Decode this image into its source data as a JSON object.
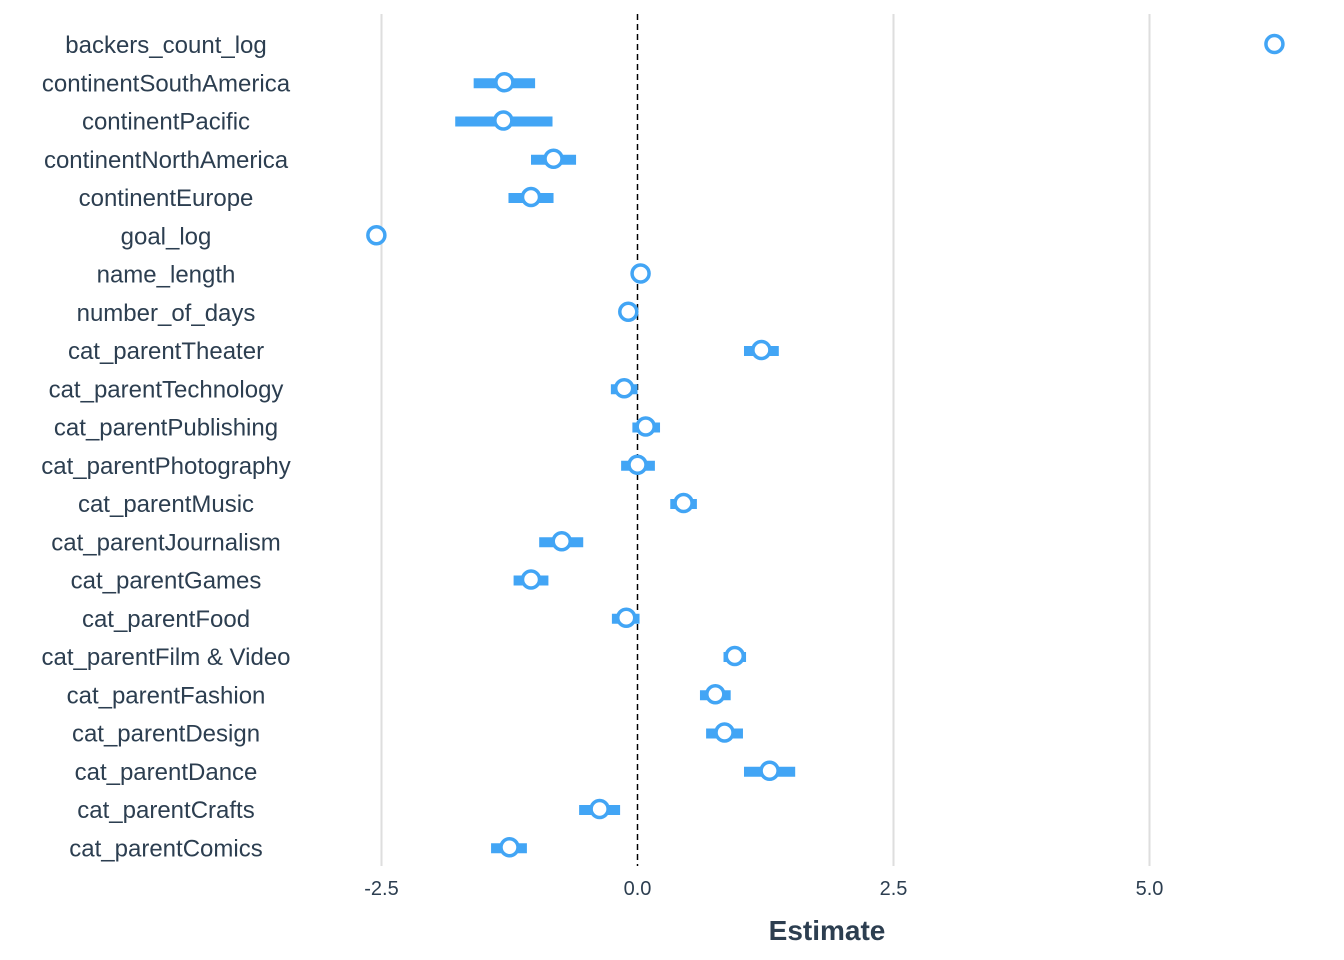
{
  "chart_data": {
    "type": "coefficient-plot",
    "title": "",
    "xlabel": "Estimate",
    "ylabel": "",
    "xlim": [
      -3.75,
      6.6
    ],
    "x_ticks": [
      -2.5,
      0.0,
      2.5,
      5.0
    ],
    "x_tick_labels": [
      "-2.5",
      "0.0",
      "2.5",
      "5.0"
    ],
    "reference_line": 0,
    "grid": "vertical major gridlines",
    "colors": {
      "point": "#42a5f5",
      "interval": "#42a5f5",
      "grid": "#dedede",
      "text": "#2c3e50",
      "reference": "#000000"
    },
    "terms": [
      {
        "term": "backers_count_log",
        "estimate": 6.22,
        "low": 6.2,
        "high": 6.24
      },
      {
        "term": "continentSouthAmerica",
        "estimate": -1.3,
        "low": -1.6,
        "high": -1.0
      },
      {
        "term": "continentPacific",
        "estimate": -1.31,
        "low": -1.78,
        "high": -0.83
      },
      {
        "term": "continentNorthAmerica",
        "estimate": -0.82,
        "low": -1.04,
        "high": -0.6
      },
      {
        "term": "continentEurope",
        "estimate": -1.04,
        "low": -1.26,
        "high": -0.82
      },
      {
        "term": "goal_log",
        "estimate": -2.55,
        "low": -2.56,
        "high": -2.54
      },
      {
        "term": "name_length",
        "estimate": 0.03,
        "low": 0.02,
        "high": 0.04
      },
      {
        "term": "number_of_days",
        "estimate": -0.09,
        "low": -0.1,
        "high": -0.08
      },
      {
        "term": "cat_parentTheater",
        "estimate": 1.21,
        "low": 1.04,
        "high": 1.38
      },
      {
        "term": "cat_parentTechnology",
        "estimate": -0.13,
        "low": -0.26,
        "high": 0.0
      },
      {
        "term": "cat_parentPublishing",
        "estimate": 0.08,
        "low": -0.05,
        "high": 0.22
      },
      {
        "term": "cat_parentPhotography",
        "estimate": 0.0,
        "low": -0.16,
        "high": 0.17
      },
      {
        "term": "cat_parentMusic",
        "estimate": 0.45,
        "low": 0.32,
        "high": 0.58
      },
      {
        "term": "cat_parentJournalism",
        "estimate": -0.74,
        "low": -0.96,
        "high": -0.53
      },
      {
        "term": "cat_parentGames",
        "estimate": -1.04,
        "low": -1.21,
        "high": -0.87
      },
      {
        "term": "cat_parentFood",
        "estimate": -0.11,
        "low": -0.25,
        "high": 0.02
      },
      {
        "term": "cat_parentFilm & Video",
        "estimate": 0.95,
        "low": 0.84,
        "high": 1.06
      },
      {
        "term": "cat_parentFashion",
        "estimate": 0.76,
        "low": 0.61,
        "high": 0.91
      },
      {
        "term": "cat_parentDesign",
        "estimate": 0.85,
        "low": 0.67,
        "high": 1.03
      },
      {
        "term": "cat_parentDance",
        "estimate": 1.29,
        "low": 1.04,
        "high": 1.54
      },
      {
        "term": "cat_parentCrafts",
        "estimate": -0.37,
        "low": -0.57,
        "high": -0.17
      },
      {
        "term": "cat_parentComics",
        "estimate": -1.25,
        "low": -1.43,
        "high": -1.08
      }
    ]
  }
}
